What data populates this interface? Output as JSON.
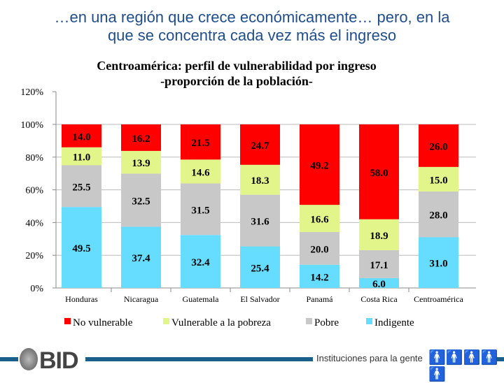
{
  "headline": {
    "line1": "…en una región que crece económicamente… pero, en la",
    "line2": "que se concentra cada vez más el ingreso"
  },
  "footer": {
    "logo_text": "BID",
    "tagline": "Instituciones para la gente"
  },
  "chart_data": {
    "type": "bar",
    "stacked": true,
    "title": "Centroamérica: perfil de vulnerabilidad por ingreso",
    "subtitle": "-proporción de la población-",
    "categories": [
      "Honduras",
      "Nicaragua",
      "Guatemala",
      "El Salvador",
      "Panamá",
      "Costa Rica",
      "Centroamérica"
    ],
    "series": [
      {
        "name": "Indigente",
        "color": "#66ddff",
        "values": [
          49.5,
          37.4,
          32.4,
          25.4,
          14.2,
          6.0,
          31.0
        ]
      },
      {
        "name": "Pobre",
        "color": "#c8c8c8",
        "values": [
          25.5,
          32.5,
          31.5,
          31.6,
          20.0,
          17.1,
          28.0
        ]
      },
      {
        "name": "Vulnerable a la pobreza",
        "color": "#e2f58a",
        "values": [
          11.0,
          13.9,
          14.6,
          18.3,
          16.6,
          18.9,
          15.0
        ]
      },
      {
        "name": "No vulnerable",
        "color": "#ff0000",
        "values": [
          14.0,
          16.2,
          21.5,
          24.7,
          49.2,
          58.0,
          26.0
        ]
      }
    ],
    "legend_order": [
      "No vulnerable",
      "Vulnerable a la pobreza",
      "Pobre",
      "Indigente"
    ],
    "yticks": [
      "0%",
      "20%",
      "40%",
      "60%",
      "80%",
      "100%",
      "120%"
    ],
    "ylim": [
      0,
      120
    ],
    "grid": true,
    "legend_position": "bottom"
  }
}
